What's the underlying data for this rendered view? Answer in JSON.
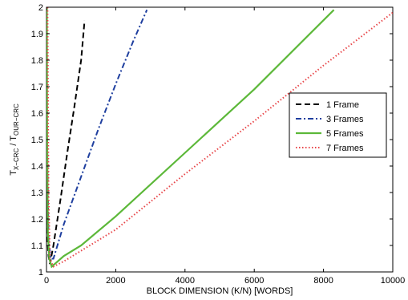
{
  "chart_data": {
    "type": "line",
    "xlabel": "BLOCK DIMENSION (K/N) [WORDS]",
    "ylabel": {
      "main1": "T",
      "sub1": "X−CRC",
      "sep": " / T",
      "sub2": "OUR−CRC"
    },
    "xlim": [
      0,
      10000
    ],
    "ylim": [
      1,
      2
    ],
    "x_ticks": [
      0,
      2000,
      4000,
      6000,
      8000,
      10000
    ],
    "y_ticks": [
      1,
      1.1,
      1.2,
      1.3,
      1.4,
      1.5,
      1.6,
      1.7,
      1.8,
      1.9,
      2
    ],
    "x_tick_labels": [
      "0",
      "2000",
      "4000",
      "6000",
      "8000",
      "10000"
    ],
    "y_tick_labels": [
      "1",
      "1.1",
      "1.2",
      "1.3",
      "1.4",
      "1.5",
      "1.6",
      "1.7",
      "1.8",
      "1.9",
      "2"
    ],
    "grid": false,
    "legend_position": "right",
    "series": [
      {
        "name": "1 Frame",
        "color": "#000000",
        "style": "dashed",
        "x": [
          10,
          30,
          60,
          100,
          200,
          400,
          600,
          800,
          1000,
          1100
        ],
        "y": [
          1.4,
          1.12,
          1.06,
          1.03,
          1.1,
          1.27,
          1.45,
          1.62,
          1.8,
          1.95
        ]
      },
      {
        "name": "3 Frames",
        "color": "#1f3f9f",
        "style": "dashdot",
        "x": [
          20,
          60,
          120,
          200,
          500,
          1000,
          1500,
          2000,
          2500,
          2900
        ],
        "y": [
          1.5,
          1.12,
          1.05,
          1.05,
          1.18,
          1.36,
          1.54,
          1.71,
          1.87,
          1.99
        ]
      },
      {
        "name": "5 Frames",
        "color": "#5cb839",
        "style": "solid",
        "x": [
          10,
          20,
          40,
          80,
          150,
          500,
          1000,
          2000,
          4000,
          6000,
          8300
        ],
        "y": [
          2.0,
          1.5,
          1.15,
          1.05,
          1.02,
          1.06,
          1.1,
          1.21,
          1.45,
          1.69,
          1.99
        ]
      },
      {
        "name": "7 Frames",
        "color": "#e8474a",
        "style": "dotted",
        "x": [
          30,
          60,
          100,
          200,
          500,
          1000,
          2000,
          4000,
          6000,
          8000,
          10000
        ],
        "y": [
          2.0,
          1.3,
          1.05,
          1.02,
          1.04,
          1.08,
          1.16,
          1.37,
          1.57,
          1.78,
          1.98
        ]
      }
    ]
  }
}
